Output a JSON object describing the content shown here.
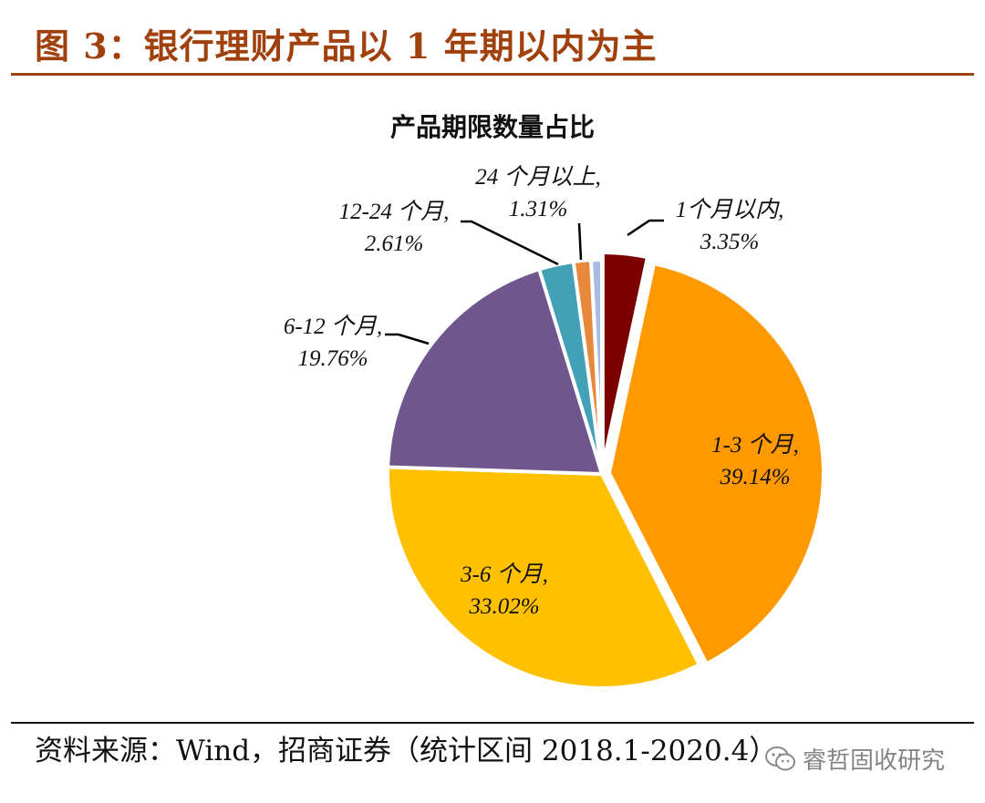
{
  "figure_title": "图 3：银行理财产品以 1 年期以内为主",
  "source_text": "资料来源：Wind，招商证券（统计区间 2018.1-2020.4）",
  "watermark": {
    "text": "睿哲固收研究",
    "icon": "wechat-icon"
  },
  "colors": {
    "accent": "#a0410d"
  },
  "chart_data": {
    "type": "pie",
    "title": "产品期限数量占比",
    "slices": [
      {
        "label": "1个月以内,",
        "value": 3.35,
        "display": "3.35%",
        "color": "#7b0000",
        "exploded": true
      },
      {
        "label": "1-3 个月,",
        "value": 39.14,
        "display": "39.14%",
        "color": "#ff9900",
        "exploded": true
      },
      {
        "label": "3-6 个月,",
        "value": 33.02,
        "display": "33.02%",
        "color": "#ffc000",
        "exploded": false
      },
      {
        "label": "6-12 个月,",
        "value": 19.76,
        "display": "19.76%",
        "color": "#6f568c",
        "exploded": false
      },
      {
        "label": "12-24 个月,",
        "value": 2.61,
        "display": "2.61%",
        "color": "#42a1b6",
        "exploded": false
      },
      {
        "label": "24 个月以上,",
        "value": 1.31,
        "display": "1.31%",
        "color": "#e8883a",
        "exploded": false
      },
      {
        "label": "",
        "value": 0.81,
        "display": "",
        "color": "#a9bde4",
        "exploded": false
      }
    ],
    "start_angle_deg": 0,
    "direction": "clockwise"
  }
}
